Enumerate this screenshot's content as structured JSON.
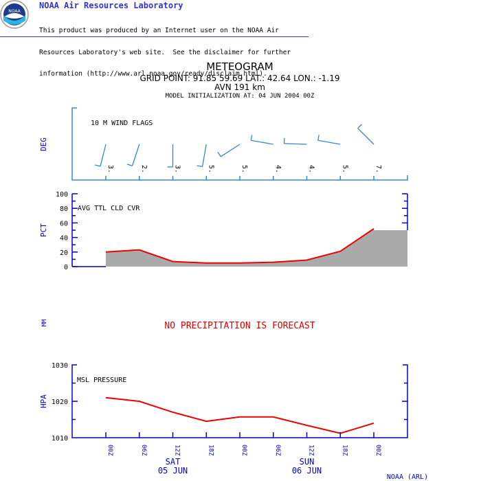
{
  "header": {
    "org_title": "NOAA Air Resources Laboratory",
    "disclaimer_lines": [
      "This product was produced by an Internet user on the NOAA Air",
      "Resources Laboratory's web site.  See the disclaimer for further",
      "information (http://www.arl.noaa.gov/ready/disclaim.html)."
    ],
    "logo_text": "NOAA"
  },
  "titles": {
    "main": "METEOGRAM",
    "grid_point": "GRID POINT:  91.85  59.69 LAT.: 42.64 LON.:  -1.19",
    "model": "AVN 191 km",
    "init": "MODEL INITIALIZATION AT: 04 JUN 2004 00Z"
  },
  "footer": {
    "credit": "NOAA (ARL)"
  },
  "precip": {
    "axis_label": "MM",
    "message": "NO PRECIPITATION IS FORECAST"
  },
  "colors": {
    "axis_blue": "#0000cc",
    "wind_blue": "#3388cc",
    "series_red": "#ee0000",
    "fill_gray": "#aaaaaa"
  },
  "chart_data": [
    {
      "type": "line",
      "title": "10 M    WIND FLAGS",
      "ylabel": "DEG",
      "x": [
        "00Z",
        "06Z",
        "12Z",
        "18Z",
        "00Z",
        "06Z",
        "12Z",
        "18Z",
        "00Z"
      ],
      "speed_labels": [
        "3.",
        "2.",
        "3.",
        "5.",
        "5.",
        "4.",
        "4.",
        "5.",
        "7."
      ],
      "direction_deg_approx": [
        194,
        198,
        180,
        190,
        237,
        280,
        272,
        280,
        315
      ]
    },
    {
      "type": "area",
      "title": "AVG TTL CLD CVR",
      "ylabel": "PCT",
      "ylim": [
        0,
        100
      ],
      "yticks": [
        0,
        20,
        40,
        60,
        80,
        100
      ],
      "x": [
        "00Z",
        "06Z",
        "12Z",
        "18Z",
        "00Z",
        "06Z",
        "12Z",
        "18Z",
        "00Z"
      ],
      "values": [
        20,
        23,
        7,
        5,
        5,
        6,
        9,
        21,
        52
      ],
      "extension_value": 50
    },
    {
      "type": "line",
      "title": "MSL PRESSURE",
      "ylabel": "HPA",
      "ylim": [
        1010,
        1030
      ],
      "yticks": [
        1010,
        1020,
        1030
      ],
      "x": [
        "00Z",
        "06Z",
        "12Z",
        "18Z",
        "00Z",
        "06Z",
        "12Z",
        "18Z",
        "00Z"
      ],
      "values": [
        1021,
        1020,
        1017,
        1014.5,
        1015.7,
        1015.7,
        1013.4,
        1011.2,
        1014
      ],
      "xtick_labels": [
        "00Z",
        "06Z",
        "12Z",
        "18Z",
        "00Z",
        "06Z",
        "12Z",
        "18Z",
        "00Z"
      ],
      "day_labels": [
        {
          "day": "SAT",
          "date": "05 JUN",
          "at_index": 2
        },
        {
          "day": "SUN",
          "date": "06 JUN",
          "at_index": 6
        }
      ]
    }
  ]
}
